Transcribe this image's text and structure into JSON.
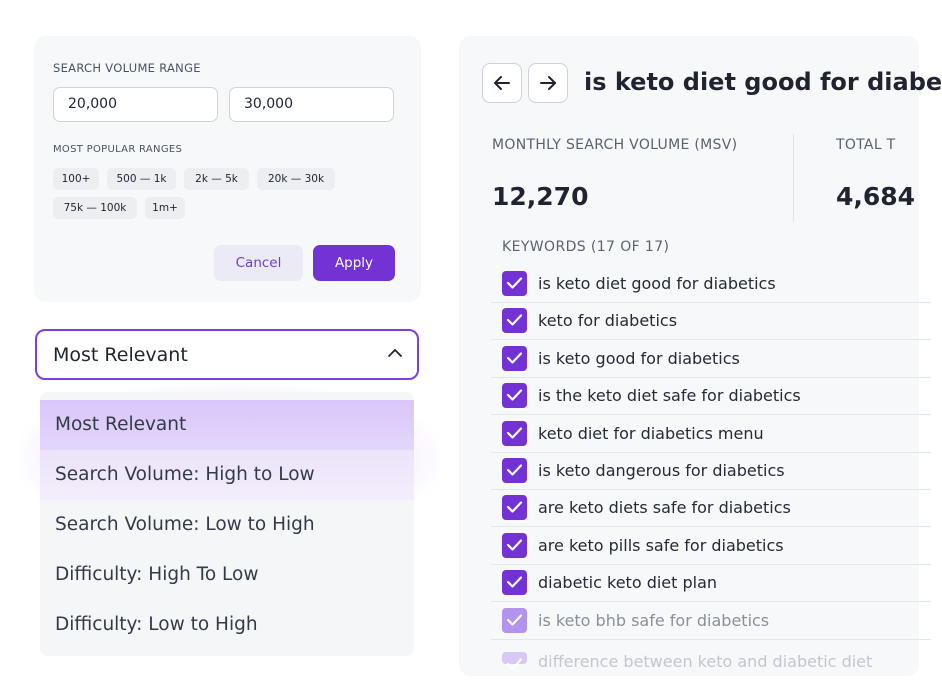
{
  "filter": {
    "title": "SEARCH VOLUME RANGE",
    "min_value": "20,000",
    "max_value": "30,000",
    "popular_title": "MOST POPULAR RANGES",
    "chips": [
      "100+",
      "500 — 1k",
      "2k — 5k",
      "20k — 30k",
      "75k — 100k",
      "1m+"
    ],
    "cancel_label": "Cancel",
    "apply_label": "Apply"
  },
  "sort": {
    "selected": "Most Relevant",
    "options": [
      "Most Relevant",
      "Search Volume: High to Low",
      "Search Volume: Low to High",
      "Difficulty: High To Low",
      "Difficulty: Low to High"
    ]
  },
  "detail": {
    "title": "is keto diet good for diabe",
    "msv_label": "MONTHLY SEARCH VOLUME (MSV)",
    "msv_value": "12,270",
    "total_label": "TOTAL T",
    "total_value": "4,684",
    "keywords_heading": "KEYWORDS (17 OF 17)",
    "keywords": [
      "is keto diet good for diabetics",
      "keto for diabetics",
      "is keto good for diabetics",
      "is the keto diet safe for diabetics",
      "keto diet for diabetics menu",
      "is keto dangerous for diabetics",
      "are keto diets safe for diabetics",
      "are keto pills safe for diabetics",
      "diabetic keto diet plan",
      "is keto bhb safe for diabetics",
      "difference between keto and diabetic diet"
    ]
  },
  "colors": {
    "accent": "#7232d4",
    "accent_border": "#7c3fe0",
    "selected_option_bg": "#d9c6fa"
  },
  "icons": [
    "chevron-up-icon",
    "arrow-left-icon",
    "arrow-right-icon",
    "checkmark-icon"
  ]
}
